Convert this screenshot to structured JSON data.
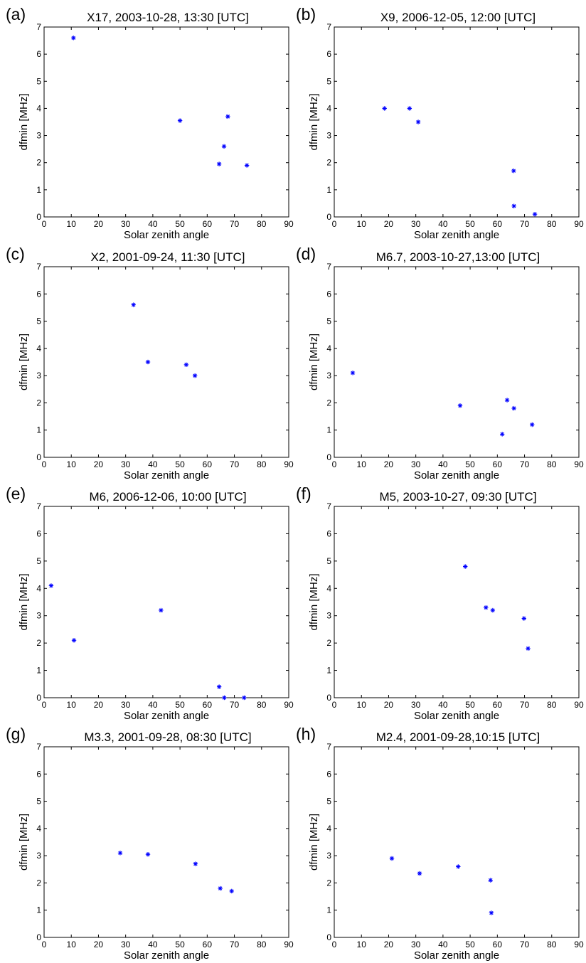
{
  "chart_data": [
    {
      "type": "scatter",
      "panel_label": "(a)",
      "title": "X17, 2003-10-28, 13:30 [UTC]",
      "xlabel": "Solar zenith angle",
      "ylabel": "dfmin [MHz]",
      "xlim": [
        0,
        90
      ],
      "ylim": [
        0,
        7
      ],
      "xticks": [
        0,
        10,
        20,
        30,
        40,
        50,
        60,
        70,
        80,
        90
      ],
      "yticks": [
        0,
        1,
        2,
        3,
        4,
        5,
        6,
        7
      ],
      "grid": false,
      "marker": "*",
      "marker_color": "#0000ff",
      "points": [
        {
          "x": 10.8,
          "y": 6.6
        },
        {
          "x": 50.0,
          "y": 3.55
        },
        {
          "x": 64.4,
          "y": 1.95
        },
        {
          "x": 66.2,
          "y": 2.6
        },
        {
          "x": 67.6,
          "y": 3.7
        },
        {
          "x": 74.6,
          "y": 1.9
        }
      ]
    },
    {
      "type": "scatter",
      "panel_label": "(b)",
      "title": "X9, 2006-12-05, 12:00 [UTC]",
      "xlabel": "Solar zenith angle",
      "ylabel": "dfmin [MHz]",
      "xlim": [
        0,
        90
      ],
      "ylim": [
        0,
        7
      ],
      "xticks": [
        0,
        10,
        20,
        30,
        40,
        50,
        60,
        70,
        80,
        90
      ],
      "yticks": [
        0,
        1,
        2,
        3,
        4,
        5,
        6,
        7
      ],
      "grid": false,
      "marker": "*",
      "marker_color": "#0000ff",
      "points": [
        {
          "x": 18.5,
          "y": 4.0
        },
        {
          "x": 27.7,
          "y": 4.0
        },
        {
          "x": 30.9,
          "y": 3.5
        },
        {
          "x": 66.0,
          "y": 1.7
        },
        {
          "x": 66.1,
          "y": 0.4
        },
        {
          "x": 73.8,
          "y": 0.1
        }
      ]
    },
    {
      "type": "scatter",
      "panel_label": "(c)",
      "title": "X2, 2001-09-24, 11:30 [UTC]",
      "xlabel": "Solar zenith angle",
      "ylabel": "dfmin [MHz]",
      "xlim": [
        0,
        90
      ],
      "ylim": [
        0,
        7
      ],
      "xticks": [
        0,
        10,
        20,
        30,
        40,
        50,
        60,
        70,
        80,
        90
      ],
      "yticks": [
        0,
        1,
        2,
        3,
        4,
        5,
        6,
        7
      ],
      "grid": false,
      "marker": "*",
      "marker_color": "#0000ff",
      "points": [
        {
          "x": 32.9,
          "y": 5.6
        },
        {
          "x": 38.2,
          "y": 3.5
        },
        {
          "x": 52.3,
          "y": 3.4
        },
        {
          "x": 55.5,
          "y": 3.0
        }
      ]
    },
    {
      "type": "scatter",
      "panel_label": "(d)",
      "title": "M6.7, 2003-10-27,13:00 [UTC]",
      "xlabel": "Solar zenith angle",
      "ylabel": "dfmin [MHz]",
      "xlim": [
        0,
        90
      ],
      "ylim": [
        0,
        7
      ],
      "xticks": [
        0,
        10,
        20,
        30,
        40,
        50,
        60,
        70,
        80,
        90
      ],
      "yticks": [
        0,
        1,
        2,
        3,
        4,
        5,
        6,
        7
      ],
      "grid": false,
      "marker": "*",
      "marker_color": "#0000ff",
      "points": [
        {
          "x": 6.8,
          "y": 3.1
        },
        {
          "x": 46.3,
          "y": 1.9
        },
        {
          "x": 61.8,
          "y": 0.85
        },
        {
          "x": 63.6,
          "y": 2.1
        },
        {
          "x": 66.1,
          "y": 1.8
        },
        {
          "x": 72.8,
          "y": 1.2
        }
      ]
    },
    {
      "type": "scatter",
      "panel_label": "(e)",
      "title": "M6, 2006-12-06, 10:00 [UTC]",
      "xlabel": "Solar zenith angle",
      "ylabel": "dfmin [MHz]",
      "xlim": [
        0,
        90
      ],
      "ylim": [
        0,
        7
      ],
      "xticks": [
        0,
        10,
        20,
        30,
        40,
        50,
        60,
        70,
        80,
        90
      ],
      "yticks": [
        0,
        1,
        2,
        3,
        4,
        5,
        6,
        7
      ],
      "grid": false,
      "marker": "*",
      "marker_color": "#0000ff",
      "points": [
        {
          "x": 2.6,
          "y": 4.1
        },
        {
          "x": 11.0,
          "y": 2.1
        },
        {
          "x": 43.0,
          "y": 3.2
        },
        {
          "x": 64.4,
          "y": 0.4
        },
        {
          "x": 66.3,
          "y": 0.0
        },
        {
          "x": 73.6,
          "y": 0.0
        }
      ]
    },
    {
      "type": "scatter",
      "panel_label": "(f)",
      "title": "M5, 2003-10-27, 09:30 [UTC]",
      "xlabel": "Solar zenith angle",
      "ylabel": "dfmin [MHz]",
      "xlim": [
        0,
        90
      ],
      "ylim": [
        0,
        7
      ],
      "xticks": [
        0,
        10,
        20,
        30,
        40,
        50,
        60,
        70,
        80,
        90
      ],
      "yticks": [
        0,
        1,
        2,
        3,
        4,
        5,
        6,
        7
      ],
      "grid": false,
      "marker": "*",
      "marker_color": "#0000ff",
      "points": [
        {
          "x": 48.2,
          "y": 4.8
        },
        {
          "x": 55.8,
          "y": 3.3
        },
        {
          "x": 58.3,
          "y": 3.2
        },
        {
          "x": 69.8,
          "y": 2.9
        },
        {
          "x": 71.3,
          "y": 1.8
        }
      ]
    },
    {
      "type": "scatter",
      "panel_label": "(g)",
      "title": "M3.3, 2001-09-28,  08:30 [UTC]",
      "xlabel": "Solar zenith angle",
      "ylabel": "dfmin [MHz]",
      "xlim": [
        0,
        90
      ],
      "ylim": [
        0,
        7
      ],
      "xticks": [
        0,
        10,
        20,
        30,
        40,
        50,
        60,
        70,
        80,
        90
      ],
      "yticks": [
        0,
        1,
        2,
        3,
        4,
        5,
        6,
        7
      ],
      "grid": false,
      "marker": "*",
      "marker_color": "#0000ff",
      "points": [
        {
          "x": 28.0,
          "y": 3.1
        },
        {
          "x": 38.2,
          "y": 3.05
        },
        {
          "x": 55.7,
          "y": 2.7
        },
        {
          "x": 64.8,
          "y": 1.8
        },
        {
          "x": 69.0,
          "y": 1.7
        }
      ]
    },
    {
      "type": "scatter",
      "panel_label": "(h)",
      "title": "M2.4, 2001-09-28,10:15 [UTC]",
      "xlabel": "Solar zenith angle",
      "ylabel": "dfmin [MHz]",
      "xlim": [
        0,
        90
      ],
      "ylim": [
        0,
        7
      ],
      "xticks": [
        0,
        10,
        20,
        30,
        40,
        50,
        60,
        70,
        80,
        90
      ],
      "yticks": [
        0,
        1,
        2,
        3,
        4,
        5,
        6,
        7
      ],
      "grid": false,
      "marker": "*",
      "marker_color": "#0000ff",
      "points": [
        {
          "x": 21.2,
          "y": 2.9
        },
        {
          "x": 31.4,
          "y": 2.35
        },
        {
          "x": 45.6,
          "y": 2.6
        },
        {
          "x": 57.5,
          "y": 2.1
        },
        {
          "x": 57.8,
          "y": 0.9
        }
      ]
    }
  ]
}
